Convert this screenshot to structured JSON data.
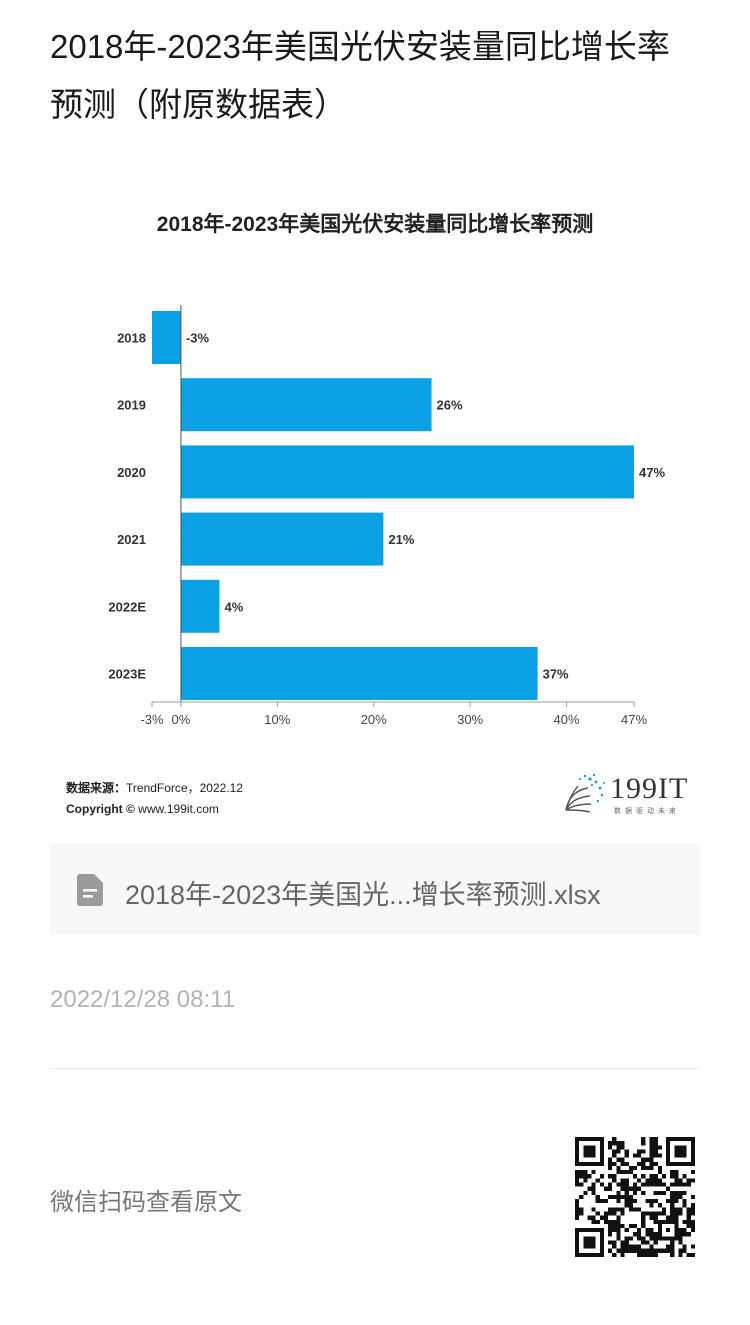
{
  "page": {
    "title": "2018年-2023年美国光伏安装量同比增长率预测（附原数据表）"
  },
  "chart_data": {
    "type": "bar",
    "orientation": "horizontal",
    "title": "2018年-2023年美国光伏安装量同比增长率预测",
    "categories": [
      "2018",
      "2019",
      "2020",
      "2021",
      "2022E",
      "2023E"
    ],
    "values": [
      -3,
      26,
      47,
      21,
      4,
      37
    ],
    "data_labels": [
      "-3%",
      "26%",
      "47%",
      "21%",
      "4%",
      "37%"
    ],
    "x_ticks": [
      -3,
      0,
      10,
      20,
      30,
      40,
      47
    ],
    "x_tick_labels": [
      "-3%",
      "0%",
      "10%",
      "20%",
      "30%",
      "40%",
      "47%"
    ],
    "xlim": [
      -3,
      47
    ],
    "grid": false,
    "legend": "none",
    "bar_color": "#0ca0e4"
  },
  "source": {
    "label": "数据来源：",
    "text": "TrendForce，2022.12",
    "copyright_label": "Copyright ©",
    "copyright_text": " www.199it.com"
  },
  "brand": {
    "name": "199IT",
    "tagline": "数据驱动未来"
  },
  "attachment": {
    "icon": "document-icon",
    "file_name": "2018年-2023年美国光...增长率预测.xlsx"
  },
  "timestamp": "2022/12/28 08:11",
  "footer": {
    "wechat_text": "微信扫码查看原文",
    "qr_icon": "qr-code-icon"
  }
}
